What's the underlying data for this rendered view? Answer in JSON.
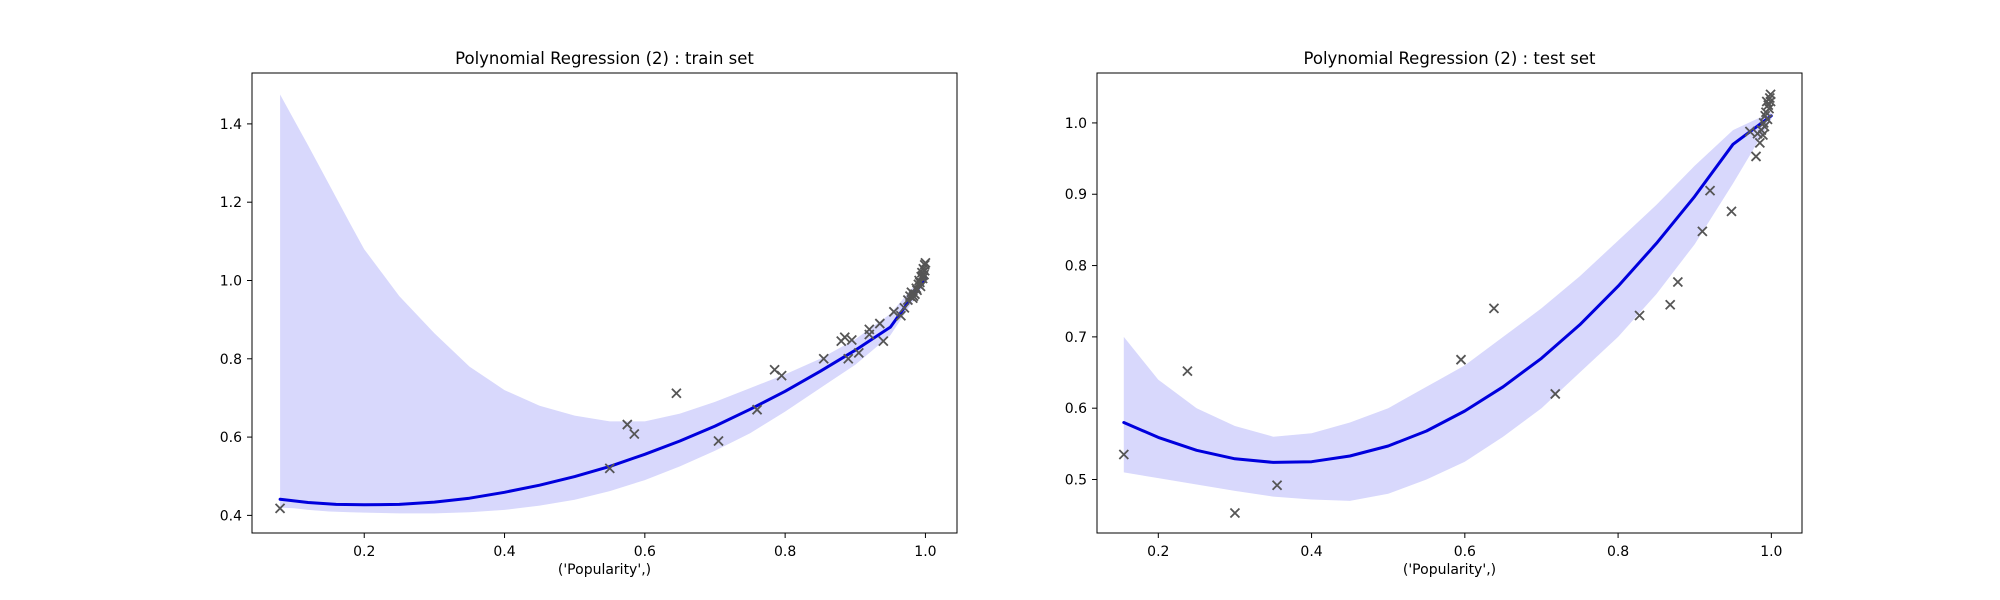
{
  "chart_data": [
    {
      "type": "scatter",
      "title": "Polynomial Regression (2) : train set",
      "xlabel": "('Popularity',)",
      "ylabel": "",
      "xlim": [
        0.04,
        1.045
      ],
      "ylim": [
        0.355,
        1.53
      ],
      "xticks": [
        0.2,
        0.4,
        0.6,
        0.8,
        1.0
      ],
      "yticks": [
        0.4,
        0.6,
        0.8,
        1.0,
        1.2,
        1.4
      ],
      "xtick_labels": [
        "0.2",
        "0.4",
        "0.6",
        "0.8",
        "1.0"
      ],
      "ytick_labels": [
        "0.4",
        "0.6",
        "0.8",
        "1.0",
        "1.2",
        "1.4"
      ],
      "grid": false,
      "fit_curve": {
        "x": [
          0.08,
          0.12,
          0.16,
          0.2,
          0.25,
          0.3,
          0.35,
          0.4,
          0.45,
          0.5,
          0.55,
          0.6,
          0.65,
          0.7,
          0.75,
          0.8,
          0.85,
          0.9,
          0.95,
          1.0
        ],
        "y": [
          0.441,
          0.433,
          0.428,
          0.427,
          0.428,
          0.434,
          0.444,
          0.459,
          0.477,
          0.499,
          0.525,
          0.556,
          0.59,
          0.628,
          0.671,
          0.717,
          0.768,
          0.822,
          0.881,
          1.005
        ]
      },
      "confidence_band": {
        "x": [
          0.08,
          0.1,
          0.12,
          0.15,
          0.18,
          0.2,
          0.25,
          0.3,
          0.35,
          0.4,
          0.45,
          0.5,
          0.55,
          0.6,
          0.65,
          0.7,
          0.75,
          0.8,
          0.85,
          0.9,
          0.95,
          1.0
        ],
        "upper": [
          1.475,
          1.41,
          1.345,
          1.245,
          1.145,
          1.08,
          0.96,
          0.865,
          0.78,
          0.72,
          0.68,
          0.655,
          0.64,
          0.64,
          0.66,
          0.69,
          0.725,
          0.76,
          0.8,
          0.85,
          0.915,
          1.02
        ],
        "lower": [
          0.42,
          0.418,
          0.414,
          0.41,
          0.408,
          0.407,
          0.405,
          0.405,
          0.408,
          0.414,
          0.425,
          0.44,
          0.462,
          0.49,
          0.525,
          0.565,
          0.61,
          0.665,
          0.725,
          0.785,
          0.86,
          0.995
        ]
      },
      "points": {
        "x": [
          0.08,
          0.55,
          0.575,
          0.585,
          0.645,
          0.705,
          0.76,
          0.785,
          0.795,
          0.855,
          0.88,
          0.885,
          0.89,
          0.895,
          0.905,
          0.92,
          0.92,
          0.935,
          0.94,
          0.955,
          0.965,
          0.97,
          0.975,
          0.978,
          0.98,
          0.982,
          0.985,
          0.987,
          0.988,
          0.99,
          0.991,
          0.993,
          0.994,
          0.995,
          0.996,
          0.997,
          0.998,
          0.999,
          0.999,
          1.0,
          0.983,
          0.992,
          0.996
        ],
        "y": [
          0.418,
          0.52,
          0.632,
          0.608,
          0.712,
          0.59,
          0.67,
          0.772,
          0.757,
          0.8,
          0.845,
          0.855,
          0.8,
          0.848,
          0.815,
          0.862,
          0.875,
          0.89,
          0.845,
          0.92,
          0.91,
          0.93,
          0.95,
          0.96,
          0.97,
          0.955,
          0.965,
          0.98,
          0.975,
          0.99,
          1.0,
          0.985,
          1.01,
          1.02,
          1.005,
          1.03,
          1.015,
          1.04,
          1.025,
          1.045,
          0.96,
          0.995,
          1.012
        ]
      }
    },
    {
      "type": "scatter",
      "title": "Polynomial Regression (2) : test set",
      "xlabel": "('Popularity',)",
      "ylabel": "",
      "xlim": [
        0.12,
        1.04
      ],
      "ylim": [
        0.425,
        1.07
      ],
      "xticks": [
        0.2,
        0.4,
        0.6,
        0.8,
        1.0
      ],
      "yticks": [
        0.5,
        0.6,
        0.7,
        0.8,
        0.9,
        1.0
      ],
      "xtick_labels": [
        "0.2",
        "0.4",
        "0.6",
        "0.8",
        "1.0"
      ],
      "ytick_labels": [
        "0.5",
        "0.6",
        "0.7",
        "0.8",
        "0.9",
        "1.0"
      ],
      "grid": false,
      "fit_curve": {
        "x": [
          0.155,
          0.2,
          0.25,
          0.3,
          0.35,
          0.4,
          0.45,
          0.5,
          0.55,
          0.6,
          0.65,
          0.7,
          0.75,
          0.8,
          0.85,
          0.9,
          0.95,
          1.0
        ],
        "y": [
          0.58,
          0.559,
          0.541,
          0.529,
          0.524,
          0.525,
          0.533,
          0.547,
          0.568,
          0.596,
          0.63,
          0.67,
          0.717,
          0.771,
          0.831,
          0.897,
          0.97,
          1.01
        ]
      },
      "confidence_band": {
        "x": [
          0.155,
          0.2,
          0.25,
          0.3,
          0.35,
          0.4,
          0.45,
          0.5,
          0.55,
          0.6,
          0.65,
          0.7,
          0.75,
          0.8,
          0.85,
          0.9,
          0.95,
          1.0
        ],
        "upper": [
          0.7,
          0.64,
          0.6,
          0.575,
          0.56,
          0.565,
          0.58,
          0.6,
          0.63,
          0.66,
          0.7,
          0.74,
          0.785,
          0.835,
          0.885,
          0.94,
          0.99,
          1.015
        ],
        "lower": [
          0.51,
          0.502,
          0.493,
          0.484,
          0.476,
          0.472,
          0.47,
          0.48,
          0.5,
          0.525,
          0.56,
          0.6,
          0.65,
          0.7,
          0.76,
          0.83,
          0.915,
          1.005
        ]
      },
      "points": {
        "x": [
          0.155,
          0.238,
          0.3,
          0.355,
          0.595,
          0.638,
          0.718,
          0.828,
          0.868,
          0.878,
          0.91,
          0.92,
          0.948,
          0.972,
          0.98,
          0.982,
          0.985,
          0.987,
          0.989,
          0.99,
          0.991,
          0.992,
          0.993,
          0.994,
          0.995,
          0.996,
          0.997,
          0.998,
          0.999,
          0.999
        ],
        "y": [
          0.535,
          0.652,
          0.453,
          0.492,
          0.668,
          0.74,
          0.62,
          0.73,
          0.745,
          0.777,
          0.848,
          0.905,
          0.876,
          0.988,
          0.953,
          0.985,
          0.972,
          0.99,
          0.983,
          1.0,
          0.995,
          1.01,
          1.015,
          1.03,
          1.005,
          1.025,
          1.02,
          1.035,
          1.04,
          1.03
        ]
      }
    }
  ],
  "colors": {
    "fit_line": "#0000dd",
    "band_fill": "#d8d8fc",
    "marker": "#555555",
    "axes_edge": "#000000"
  }
}
